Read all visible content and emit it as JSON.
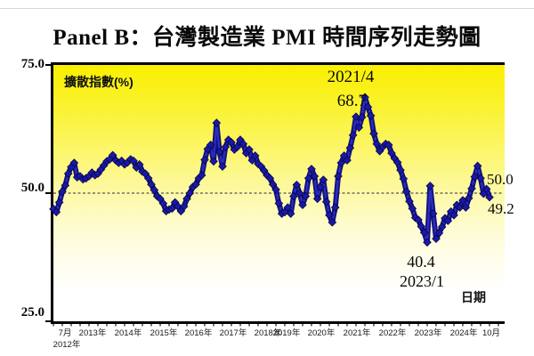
{
  "title": "Panel B：台灣製造業 PMI 時間序列走勢圖",
  "axes": {
    "unit_label": "擴散指數(%)",
    "x_axis_label": "日期",
    "y_ticks": [
      "75.0",
      "50.0",
      "25.0"
    ],
    "x_tick_labels": [
      "7月",
      "2012年",
      "2013年",
      "2014年",
      "2015年",
      "2016年",
      "2017年",
      "2018年",
      "2019年",
      "2020年",
      "2021年",
      "2022年",
      "2023年",
      "2024年",
      "10月"
    ],
    "x_tick_x": [
      73,
      75,
      104,
      144,
      184,
      223,
      262,
      301,
      322,
      361,
      401,
      441,
      481,
      521,
      552
    ],
    "x_tick_row": [
      1,
      2,
      1,
      1,
      1,
      1,
      1,
      1,
      1,
      1,
      1,
      1,
      1,
      1,
      1
    ]
  },
  "annotations": {
    "peak_date": "2021/4",
    "peak_value": "68.7",
    "trough_value": "40.4",
    "trough_date": "2023/1",
    "ref_line_label": "50.0",
    "last_value_label": "49.2"
  },
  "colors": {
    "line_dark": "#14107e",
    "line_light": "#2b2fc0",
    "marker_fill": "#1a18a6",
    "marker_edge": "#04043c",
    "ref_line": "#555555",
    "bg_top": "#f9ef00",
    "bg_bottom": "#ffffff"
  },
  "chart_data": {
    "type": "line",
    "title": "Panel B：台灣製造業 PMI 時間序列走勢圖",
    "series_name": "台灣製造業 PMI (擴散指數 %)",
    "frequency": "monthly",
    "x_start": "2012-07",
    "x_end": "2024-10",
    "ylim": [
      25.0,
      75.0
    ],
    "y_tick_values": [
      75.0,
      50.0,
      25.0
    ],
    "reference_line": 50.0,
    "legend": "none",
    "grid": "off",
    "annotated_points": [
      {
        "x": "2021-04",
        "y": 68.7
      },
      {
        "x": "2023-01",
        "y": 40.4
      },
      {
        "x": "2024-10",
        "y": 49.2
      }
    ],
    "values": [
      46.9,
      46.3,
      48.2,
      50.3,
      51.5,
      53.8,
      55.1,
      55.9,
      53.1,
      53.3,
      52.7,
      52.9,
      53.3,
      54.0,
      53.5,
      53.8,
      54.6,
      55.4,
      56.2,
      56.6,
      57.4,
      56.4,
      55.9,
      56.3,
      55.6,
      56.0,
      56.6,
      56.3,
      55.0,
      55.6,
      54.2,
      53.8,
      52.9,
      51.7,
      50.6,
      49.4,
      48.9,
      48.0,
      46.5,
      46.8,
      47.0,
      48.2,
      47.4,
      46.5,
      47.4,
      48.9,
      50.0,
      51.2,
      51.7,
      52.9,
      53.5,
      56.5,
      58.6,
      59.4,
      56.2,
      63.7,
      58.0,
      55.2,
      59.0,
      60.4,
      59.9,
      58.5,
      59.0,
      60.4,
      59.6,
      57.8,
      58.5,
      56.4,
      57.3,
      55.7,
      55.2,
      54.4,
      53.5,
      52.9,
      51.7,
      50.7,
      48.0,
      46.0,
      46.3,
      47.2,
      46.0,
      49.4,
      51.6,
      50.0,
      47.7,
      49.4,
      52.9,
      54.7,
      53.3,
      48.9,
      51.2,
      52.6,
      48.3,
      45.7,
      44.3,
      47.2,
      53.3,
      55.9,
      57.3,
      56.4,
      58.8,
      61.3,
      64.9,
      62.8,
      64.8,
      68.7,
      66.8,
      65.1,
      61.6,
      59.6,
      58.2,
      59.0,
      59.6,
      59.4,
      57.8,
      56.8,
      56.0,
      54.5,
      52.8,
      50.3,
      48.4,
      47.0,
      45.2,
      44.8,
      43.5,
      42.3,
      40.4,
      51.4,
      46.0,
      41.1,
      42.2,
      43.4,
      45.1,
      44.6,
      46.4,
      45.7,
      47.7,
      47.2,
      48.6,
      47.2,
      49.0,
      50.9,
      53.2,
      55.3,
      52.9,
      49.9,
      50.8,
      49.2
    ]
  }
}
